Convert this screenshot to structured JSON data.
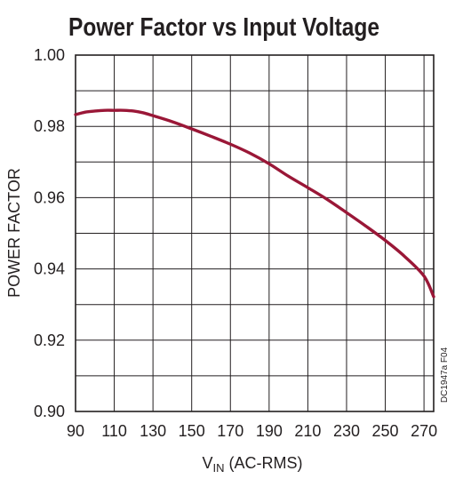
{
  "chart_data": {
    "type": "line",
    "title": "Power Factor vs Input Voltage",
    "xlabel_main": "V",
    "xlabel_sub": "IN",
    "xlabel_rest": " (AC-RMS)",
    "ylabel": "POWER FACTOR",
    "xlim": [
      90,
      275
    ],
    "ylim": [
      0.9,
      1.0
    ],
    "x_ticks": [
      90,
      110,
      130,
      150,
      170,
      190,
      210,
      230,
      250,
      270
    ],
    "y_ticks": [
      0.9,
      0.92,
      0.94,
      0.96,
      0.98,
      1.0
    ],
    "y_tick_labels": [
      "0.90",
      "0.92",
      "0.94",
      "0.96",
      "0.98",
      "1.00"
    ],
    "grid": true,
    "figure_id": "DC1947a F04",
    "series": [
      {
        "color": "#9a1737",
        "x": [
          90,
          95,
          100,
          105,
          110,
          115,
          120,
          125,
          130,
          140,
          150,
          160,
          170,
          180,
          190,
          200,
          210,
          220,
          230,
          240,
          250,
          260,
          270,
          275
        ],
        "y": [
          0.9833,
          0.984,
          0.9843,
          0.9845,
          0.9845,
          0.9845,
          0.9843,
          0.9838,
          0.983,
          0.9813,
          0.9793,
          0.9772,
          0.975,
          0.9725,
          0.9695,
          0.966,
          0.9628,
          0.9595,
          0.9558,
          0.952,
          0.948,
          0.9435,
          0.938,
          0.9322
        ]
      }
    ]
  }
}
